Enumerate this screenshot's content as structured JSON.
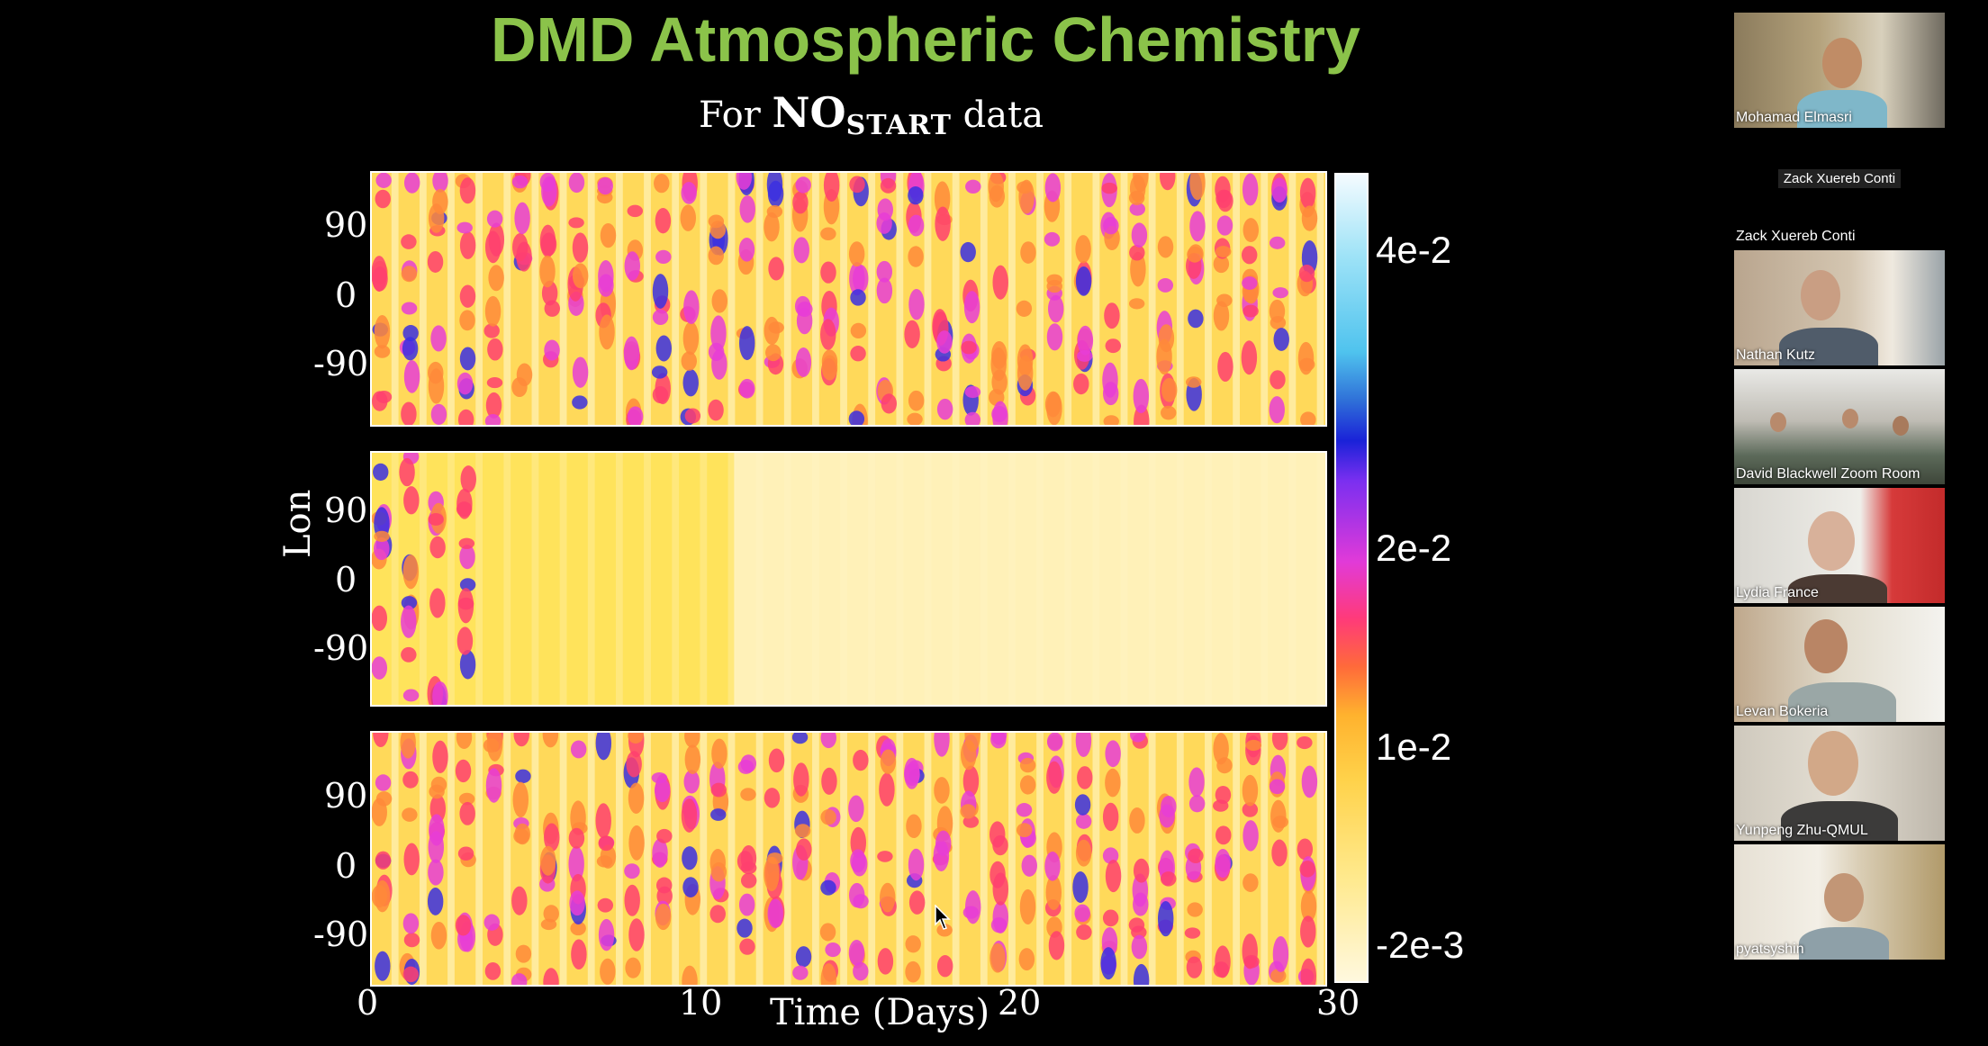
{
  "slide": {
    "title": "DMD Atmospheric Chemistry",
    "subtitle_prefix": "For ",
    "subtitle_chem": "NO",
    "subtitle_sub": "START",
    "subtitle_suffix": " data",
    "y_axis_label": "Lon",
    "x_axis_label": "Time (Days)",
    "y_ticks": [
      "90",
      "0",
      "-90"
    ],
    "x_ticks": [
      "0",
      "10",
      "20",
      "30"
    ],
    "colorbar_labels": [
      "4e-2",
      "2e-2",
      "1e-2",
      "-2e-3"
    ]
  },
  "participants": [
    {
      "name": "Mohamad Elmasri",
      "video": true
    },
    {
      "name": "Zack Xuereb Conti",
      "video": false,
      "center_label": "Zack Xuereb Conti"
    },
    {
      "name": "Nathan Kutz",
      "video": true
    },
    {
      "name": "David Blackwell Zoom Room",
      "video": true
    },
    {
      "name": "Lydia France",
      "video": true
    },
    {
      "name": "Levan Bokeria",
      "video": true
    },
    {
      "name": "Yunpeng Zhu-QMUL",
      "video": true
    },
    {
      "name": "pyatsyshin",
      "video": true
    }
  ],
  "icons": {
    "cursor": "mouse-pointer-icon"
  }
}
